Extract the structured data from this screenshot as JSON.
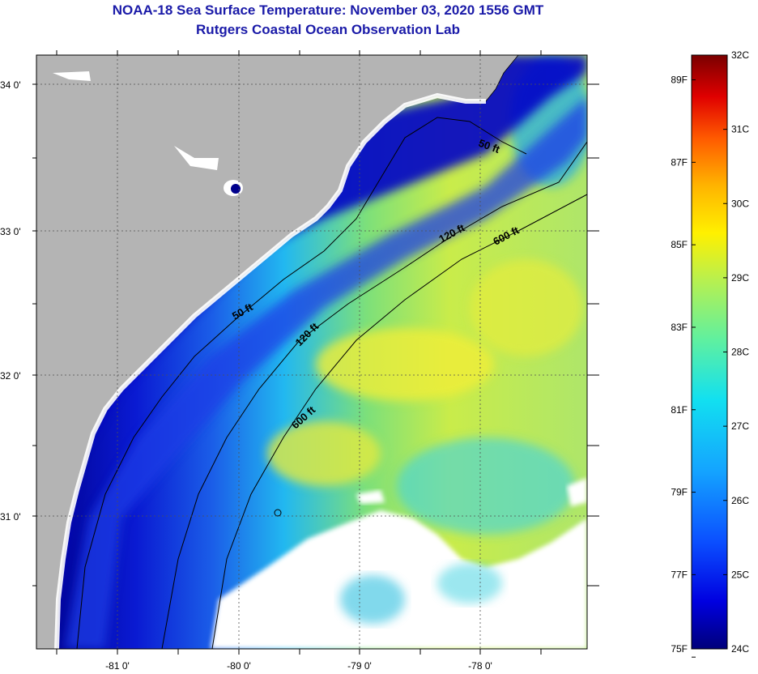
{
  "title": "NOAA-18 Sea Surface Temperature:  November 03, 2020 1556 GMT",
  "subtitle": "Rutgers Coastal Ocean Observation Lab",
  "map": {
    "lat_labels": [
      "34 0'",
      "33 0'",
      "32 0'",
      "31 0'"
    ],
    "lon_labels": [
      "-81 0'",
      "-80 0'",
      "-79 0'",
      "-78 0'"
    ],
    "isobaths": {
      "shallow_north": "50 ft",
      "shallow_mid": "50 ft",
      "mid_north": "120 ft",
      "mid_south": "120 ft",
      "deep_north": "600 ft",
      "deep_south": "600 ft"
    },
    "colors": {
      "land": "#b4b4b4",
      "cloud": "#ffffff",
      "coastline": "#000000"
    }
  },
  "colorbar": {
    "fahrenheit_labels": [
      "89F",
      "87F",
      "85F",
      "83F",
      "81F",
      "79F",
      "77F",
      "75F"
    ],
    "celsius_labels": [
      "32C",
      "31C",
      "30C",
      "29C",
      "28C",
      "27C",
      "26C",
      "25C",
      "24C"
    ],
    "range_celsius": [
      24,
      32
    ],
    "range_fahrenheit": [
      75,
      89.6
    ]
  }
}
